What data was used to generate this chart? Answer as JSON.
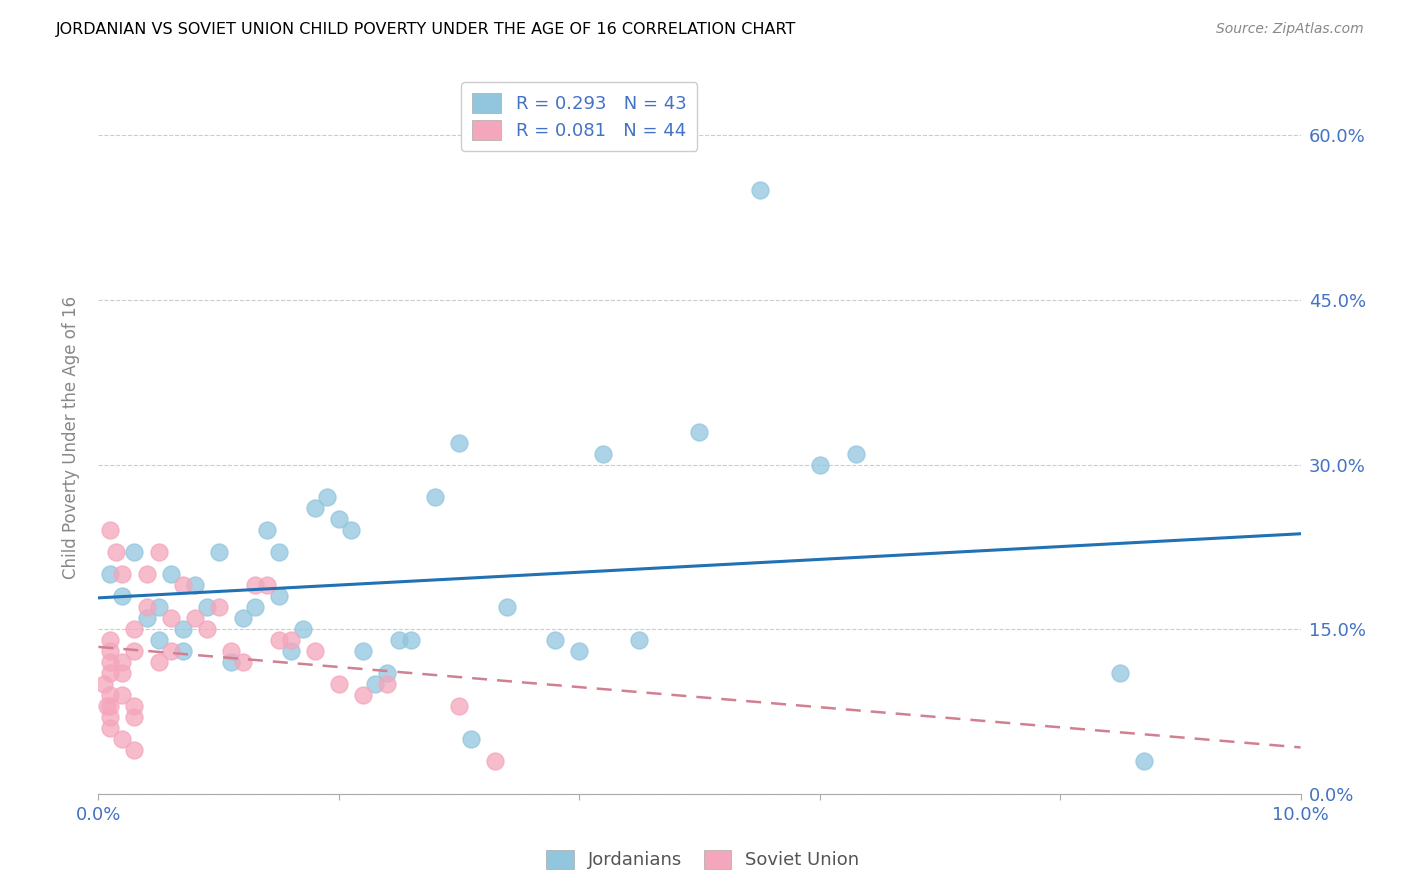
{
  "title": "JORDANIAN VS SOVIET UNION CHILD POVERTY UNDER THE AGE OF 16 CORRELATION CHART",
  "source": "Source: ZipAtlas.com",
  "ylabel": "Child Poverty Under the Age of 16",
  "xlim": [
    0.0,
    0.1
  ],
  "ylim": [
    0.0,
    0.65
  ],
  "yticks": [
    0.0,
    0.15,
    0.3,
    0.45,
    0.6
  ],
  "ytick_labels": [
    "0.0%",
    "15.0%",
    "30.0%",
    "45.0%",
    "60.0%"
  ],
  "xtick_vals": [
    0.0,
    0.02,
    0.04,
    0.06,
    0.08,
    0.1
  ],
  "xtick_labels": [
    "0.0%",
    "",
    "",
    "",
    "",
    "10.0%"
  ],
  "jordanian_color": "#92C5DE",
  "soviet_color": "#F4A6BC",
  "trend_jordan_color": "#2171b5",
  "trend_soviet_color": "#C9586C",
  "trend_soviet_dash_color": "#d08090",
  "legend_label_jordan": "Jordanians",
  "legend_label_soviet": "Soviet Union",
  "R_jordan": "0.293",
  "N_jordan": "43",
  "R_soviet": "0.081",
  "N_soviet": "44",
  "jordan_x": [
    0.001,
    0.002,
    0.003,
    0.004,
    0.005,
    0.005,
    0.006,
    0.007,
    0.007,
    0.008,
    0.009,
    0.01,
    0.011,
    0.012,
    0.013,
    0.014,
    0.015,
    0.015,
    0.016,
    0.017,
    0.018,
    0.019,
    0.02,
    0.021,
    0.022,
    0.023,
    0.024,
    0.025,
    0.026,
    0.028,
    0.03,
    0.031,
    0.034,
    0.038,
    0.04,
    0.042,
    0.045,
    0.05,
    0.055,
    0.06,
    0.063,
    0.085,
    0.087
  ],
  "jordan_y": [
    0.2,
    0.18,
    0.22,
    0.16,
    0.14,
    0.17,
    0.2,
    0.13,
    0.15,
    0.19,
    0.17,
    0.22,
    0.12,
    0.16,
    0.17,
    0.24,
    0.18,
    0.22,
    0.13,
    0.15,
    0.26,
    0.27,
    0.25,
    0.24,
    0.13,
    0.1,
    0.11,
    0.14,
    0.14,
    0.27,
    0.32,
    0.05,
    0.17,
    0.14,
    0.13,
    0.31,
    0.14,
    0.33,
    0.55,
    0.3,
    0.31,
    0.11,
    0.03
  ],
  "soviet_x": [
    0.0005,
    0.0007,
    0.001,
    0.001,
    0.001,
    0.001,
    0.001,
    0.001,
    0.001,
    0.001,
    0.001,
    0.0015,
    0.002,
    0.002,
    0.002,
    0.002,
    0.002,
    0.003,
    0.003,
    0.003,
    0.003,
    0.003,
    0.004,
    0.004,
    0.005,
    0.005,
    0.006,
    0.006,
    0.007,
    0.008,
    0.009,
    0.01,
    0.011,
    0.012,
    0.013,
    0.014,
    0.015,
    0.016,
    0.018,
    0.02,
    0.022,
    0.024,
    0.03,
    0.033
  ],
  "soviet_y": [
    0.1,
    0.08,
    0.13,
    0.11,
    0.09,
    0.08,
    0.07,
    0.06,
    0.12,
    0.14,
    0.24,
    0.22,
    0.2,
    0.12,
    0.11,
    0.09,
    0.05,
    0.13,
    0.08,
    0.07,
    0.04,
    0.15,
    0.17,
    0.2,
    0.22,
    0.12,
    0.16,
    0.13,
    0.19,
    0.16,
    0.15,
    0.17,
    0.13,
    0.12,
    0.19,
    0.19,
    0.14,
    0.14,
    0.13,
    0.1,
    0.09,
    0.1,
    0.08,
    0.03
  ]
}
